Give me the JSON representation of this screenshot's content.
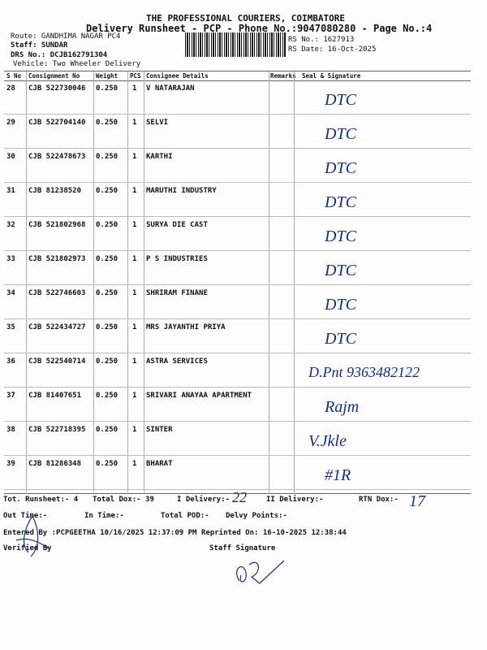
{
  "header": {
    "company": "THE PROFESSIONAL COURIERS, COIMBATORE",
    "subtitle": "Delivery Runsheet - PCP - Phone No.:9047080280 - Page No.:4",
    "route": "Route: GANDHIMA NAGAR PC4",
    "staff": "Staff: SUNDAR",
    "drs": "DRS No.: DCJB162791304",
    "vehicle": "Vehicle: Two Wheeler Delivery",
    "rs_no": "RS No.: 1627913",
    "rs_date": "RS Date: 16-Oct-2025"
  },
  "table": {
    "columns": [
      "S No",
      "Consignment No",
      "Weight",
      "PCS",
      "Consignee Details",
      "Remarks",
      "Seal & Signature"
    ],
    "rows": [
      {
        "sno": "28",
        "cno": "CJB 522730046",
        "wt": "0.250",
        "pcs": "1",
        "name": "V NATARAJAN"
      },
      {
        "sno": "29",
        "cno": "CJB 522704140",
        "wt": "0.250",
        "pcs": "1",
        "name": "SELVI"
      },
      {
        "sno": "30",
        "cno": "CJB 522478673",
        "wt": "0.250",
        "pcs": "1",
        "name": "KARTHI"
      },
      {
        "sno": "31",
        "cno": "CJB 81238520",
        "wt": "0.250",
        "pcs": "1",
        "name": "MARUTHI INDUSTRY"
      },
      {
        "sno": "32",
        "cno": "CJB 521802968",
        "wt": "0.250",
        "pcs": "1",
        "name": "SURYA DIE CAST"
      },
      {
        "sno": "33",
        "cno": "CJB 521802973",
        "wt": "0.250",
        "pcs": "1",
        "name": "P S INDUSTRIES"
      },
      {
        "sno": "34",
        "cno": "CJB 522746603",
        "wt": "0.250",
        "pcs": "1",
        "name": "SHRIRAM FINANE"
      },
      {
        "sno": "35",
        "cno": "CJB 522434727",
        "wt": "0.250",
        "pcs": "1",
        "name": "MRS JAYANTHI PRIYA"
      },
      {
        "sno": "36",
        "cno": "CJB 522540714",
        "wt": "0.250",
        "pcs": "1",
        "name": "ASTRA SERVICES"
      },
      {
        "sno": "37",
        "cno": "CJB 81407651",
        "wt": "0.250",
        "pcs": "1",
        "name": "SRIVARI ANAYAA APARTMENT"
      },
      {
        "sno": "38",
        "cno": "CJB 522718395",
        "wt": "0.250",
        "pcs": "1",
        "name": "SINTER"
      },
      {
        "sno": "39",
        "cno": "CJB 81286348",
        "wt": "0.250",
        "pcs": "1",
        "name": "BHARAT"
      }
    ],
    "signatures": [
      "DTC",
      "DTC",
      "DTC",
      "DTC",
      "DTC",
      "DTC",
      "DTC",
      "DTC",
      "D.Pnt 9363482122",
      "Rajm",
      "V.Jkle",
      "#1R"
    ]
  },
  "footer": {
    "tot_runsheet": "Tot. Runsheet:- 4",
    "total_dox": "Total Dox:-   39",
    "i_delivery": "I Delivery:-",
    "i_delivery_hand": "22",
    "ii_delivery": "II Delivery:-",
    "rtn_dox": "RTN Dox:-",
    "rtn_dox_hand": "17",
    "out_time": "Out Time:-",
    "in_time": "In Time:-",
    "total_pod": "Total POD:-",
    "delvy_points": "Delvy Points:-",
    "entered_by": "Entered By :PCPGEETHA 10/16/2025 12:37:09 PM",
    "reprinted": "Reprinted On: 16-10-2025 12:38:44",
    "verified_by": "Verified By",
    "staff_signature": "Staff Signature"
  },
  "colors": {
    "ink": "#1b2a8a"
  }
}
